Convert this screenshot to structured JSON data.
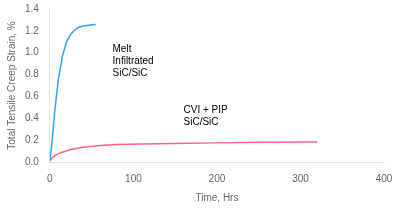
{
  "chart_data": {
    "type": "line",
    "xlabel": "Time, Hrs",
    "ylabel": "Total Tensile Creep Strain, %",
    "xlim": [
      0,
      400
    ],
    "ylim": [
      0.0,
      1.4
    ],
    "xticks": [
      0,
      100,
      200,
      300,
      400
    ],
    "yticks": [
      {
        "value": 0.0,
        "label": "0.0"
      },
      0.2,
      0.4,
      0.6,
      0.8,
      {
        "value": 1.0,
        "label": "1.0"
      },
      1.2,
      1.4
    ],
    "grid": false,
    "series": [
      {
        "x": [
          0,
          1,
          3,
          6,
          10,
          15,
          20,
          25,
          30,
          35,
          40,
          45,
          50,
          55
        ],
        "values": [
          0.01,
          0.07,
          0.22,
          0.48,
          0.75,
          0.97,
          1.1,
          1.17,
          1.21,
          1.235,
          1.245,
          1.25,
          1.255,
          1.258
        ]
      },
      {
        "x": [
          0,
          3,
          8,
          15,
          25,
          40,
          60,
          80,
          110,
          150,
          200,
          250,
          300,
          320
        ],
        "values": [
          0.01,
          0.04,
          0.07,
          0.09,
          0.115,
          0.135,
          0.15,
          0.16,
          0.165,
          0.17,
          0.175,
          0.18,
          0.183,
          0.184
        ]
      }
    ],
    "annotations": [
      {
        "text": "Melt\nInfiltrated\nSiC/SiC",
        "x": 75,
        "y": 1.08
      },
      {
        "text": "CVI + PIP\nSiC/SiC",
        "x": 160,
        "y": 0.52
      }
    ]
  }
}
